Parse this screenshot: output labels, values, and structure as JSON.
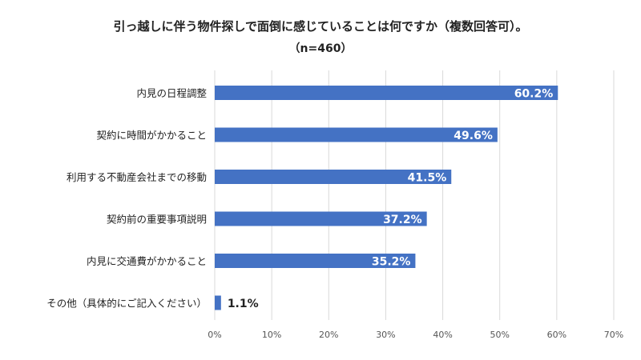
{
  "chart_data": {
    "type": "bar",
    "orientation": "horizontal",
    "title": "引っ越しに伴う物件探しで面倒に感じていることは何ですか（複数回答可）。",
    "subtitle": "（n=460）",
    "categories": [
      "内見の日程調整",
      "契約に時間がかかること",
      "利用する不動産会社までの移動",
      "契約前の重要事項説明",
      "内見に交通費がかかること",
      "その他（具体的にご記入ください）"
    ],
    "values": [
      60.2,
      49.6,
      41.5,
      37.2,
      35.2,
      1.1
    ],
    "value_labels": [
      "60.2%",
      "49.6%",
      "41.5%",
      "37.2%",
      "35.2%",
      "1.1%"
    ],
    "x_ticks": [
      "0%",
      "10%",
      "20%",
      "30%",
      "40%",
      "50%",
      "60%",
      "70%"
    ],
    "xlim": [
      0,
      70
    ],
    "grid": "vertical",
    "legend": "none",
    "bar_color": "#4472C4"
  }
}
